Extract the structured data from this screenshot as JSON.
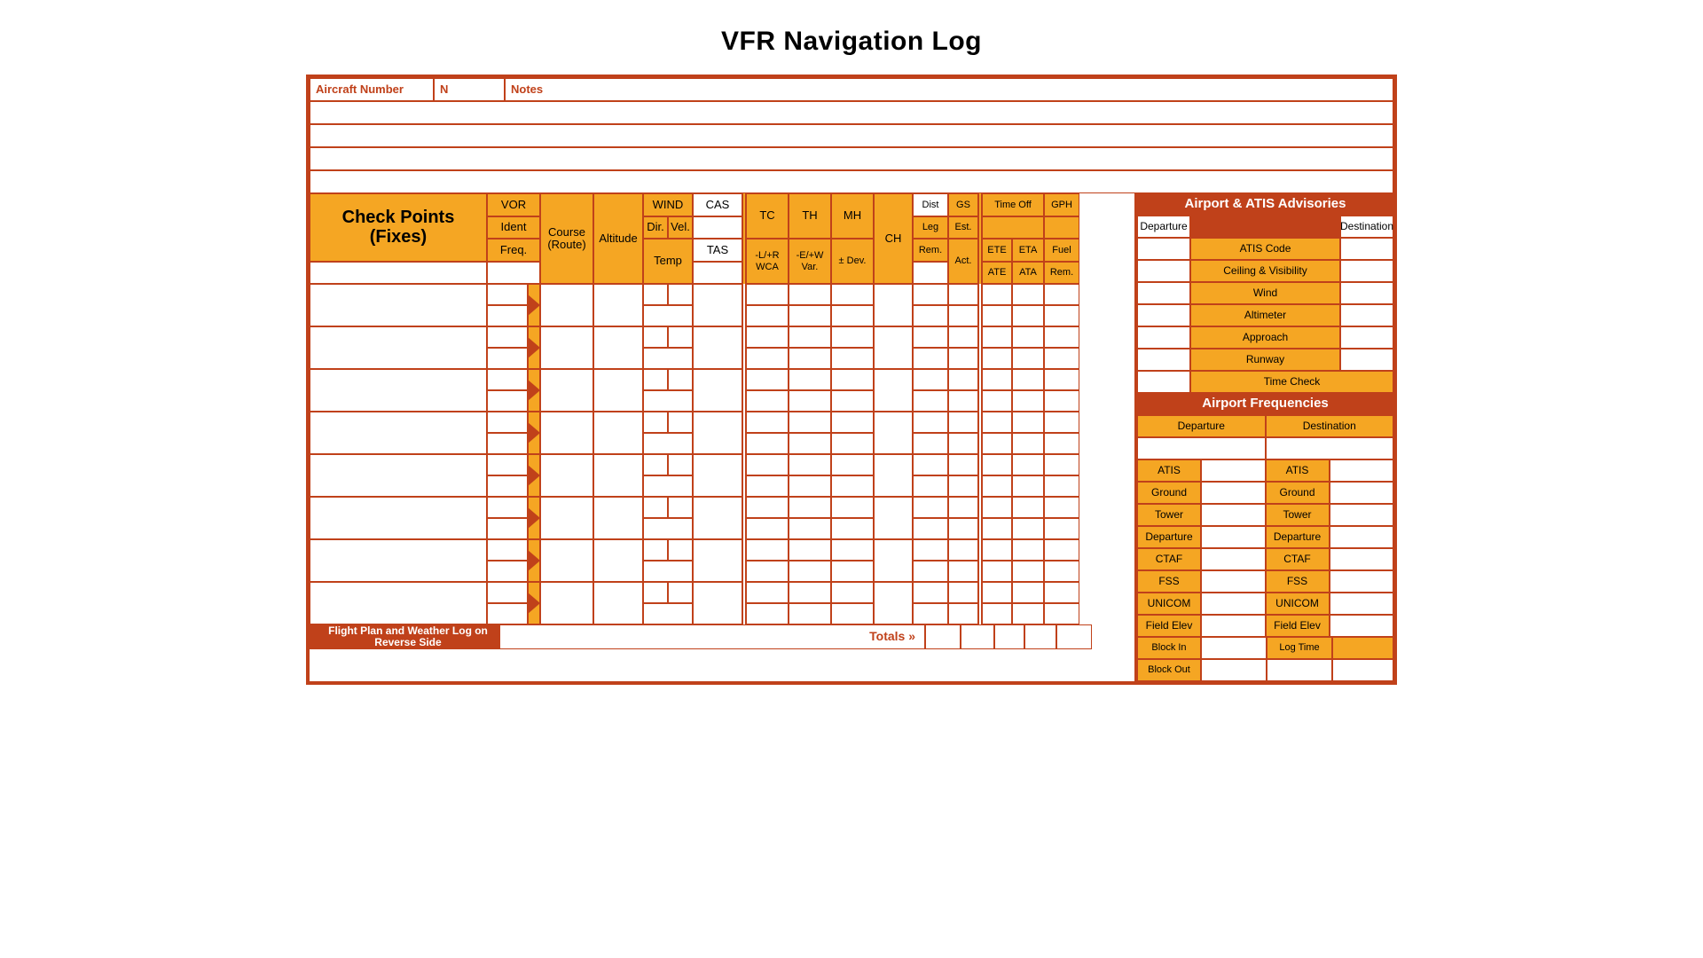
{
  "title": "VFR Navigation Log",
  "colors": {
    "border": "#c0411a",
    "orange": "#f5a623",
    "white": "#ffffff",
    "black": "#000000"
  },
  "top": {
    "aircraft_number_label": "Aircraft Number",
    "aircraft_number_prefix": "N",
    "notes_label": "Notes",
    "note_lines": 4
  },
  "main_headers": {
    "check_points": "Check Points\n(Fixes)",
    "vor": "VOR",
    "ident": "Ident",
    "freq": "Freq.",
    "course": "Course\n(Route)",
    "altitude": "Altitude",
    "wind": "WIND",
    "dir": "Dir.",
    "vel": "Vel.",
    "temp": "Temp",
    "cas": "CAS",
    "tas": "TAS",
    "tc": "TC",
    "lrwca": "-L/+R\nWCA",
    "th": "TH",
    "ewvar": "-E/+W\nVar.",
    "mh": "MH",
    "dev": "± Dev.",
    "ch": "CH",
    "dist": "Dist",
    "leg": "Leg",
    "rem": "Rem.",
    "gs": "GS",
    "est": "Est.",
    "act": "Act.",
    "timeoff": "Time Off",
    "gph": "GPH",
    "ete": "ETE",
    "eta": "ETA",
    "fuel": "Fuel",
    "ate": "ATE",
    "ata": "ATA",
    "rem2": "Rem."
  },
  "legs_count": 8,
  "totals_label": "Totals »",
  "footer": "Flight Plan and Weather Log on Reverse Side",
  "side": {
    "advisories_header": "Airport & ATIS Advisories",
    "departure": "Departure",
    "destination": "Destination",
    "rows": [
      "ATIS Code",
      "Ceiling & Visibility",
      "Wind",
      "Altimeter",
      "Approach",
      "Runway"
    ],
    "time_check": "Time Check",
    "freq_header": "Airport Frequencies",
    "freq_dep": "Departure",
    "freq_dest": "Destination",
    "freq_rows": [
      "ATIS",
      "Ground",
      "Tower",
      "Departure",
      "CTAF",
      "FSS",
      "UNICOM",
      "Field Elev"
    ],
    "block_in": "Block In",
    "block_out": "Block Out",
    "log_time": "Log Time"
  }
}
